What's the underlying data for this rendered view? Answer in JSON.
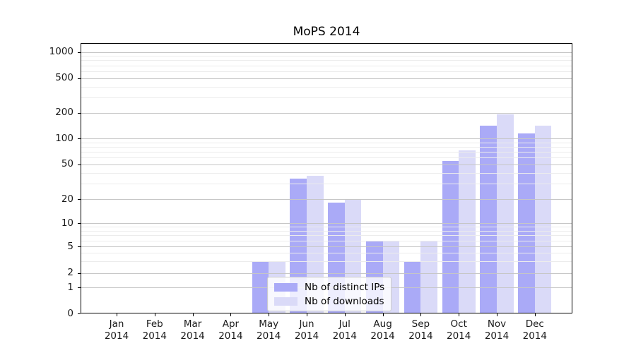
{
  "title": "MoPS 2014",
  "chart_data": {
    "type": "bar",
    "title": "MoPS 2014",
    "xlabel": "",
    "ylabel": "",
    "yscale": "symlog-like (log above ~5, compressed linear near 0)",
    "yticks": [
      0,
      1,
      2,
      5,
      10,
      20,
      50,
      100,
      200,
      500,
      1000
    ],
    "minor_gridlines": [
      3,
      4,
      6,
      7,
      8,
      9,
      30,
      40,
      60,
      70,
      80,
      90,
      300,
      400,
      600,
      700,
      800,
      900
    ],
    "ylim": [
      0,
      1270
    ],
    "grid": "horizontal, major and minor, drawn over bars",
    "legend_position": "inside plot, lower center-left",
    "categories": [
      {
        "month": "Jan",
        "year": "2014"
      },
      {
        "month": "Feb",
        "year": "2014"
      },
      {
        "month": "Mar",
        "year": "2014"
      },
      {
        "month": "Apr",
        "year": "2014"
      },
      {
        "month": "May",
        "year": "2014"
      },
      {
        "month": "Jun",
        "year": "2014"
      },
      {
        "month": "Jul",
        "year": "2014"
      },
      {
        "month": "Aug",
        "year": "2014"
      },
      {
        "month": "Sep",
        "year": "2014"
      },
      {
        "month": "Oct",
        "year": "2014"
      },
      {
        "month": "Nov",
        "year": "2014"
      },
      {
        "month": "Dec",
        "year": "2014"
      }
    ],
    "series": [
      {
        "name": "Nb of distinct IPs",
        "color": "#aaaaf7",
        "values": [
          0,
          0,
          0,
          0,
          3,
          34,
          18,
          6,
          3,
          55,
          140,
          115
        ]
      },
      {
        "name": "Nb of downloads",
        "color": "#dadaf8",
        "values": [
          0,
          0,
          0,
          0,
          3,
          37,
          20,
          6,
          6,
          73,
          190,
          140
        ]
      }
    ],
    "style": {
      "axis_color": "#000000",
      "tick_label_color": "#1a1a1a",
      "grid_major_color": "#c6c6c6",
      "grid_minor_color": "#ececec",
      "legend_border_color": "#cccccc",
      "legend_background": "rgba(255,255,255,0.8)",
      "plot_background": "#ffffff"
    }
  }
}
